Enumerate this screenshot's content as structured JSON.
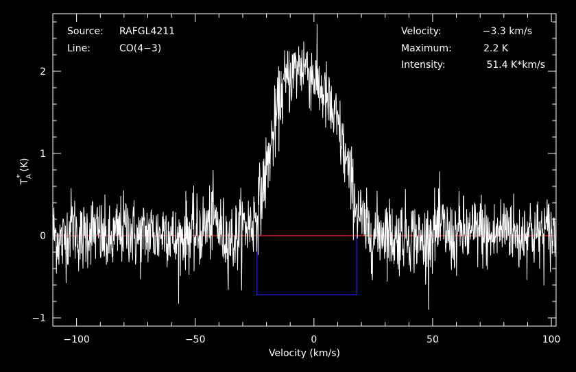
{
  "chart_data": {
    "type": "line",
    "xlabel": "Velocity (km/s)",
    "ylabel": "T",
    "ylabel_sub": "A",
    "ylabel_sup": "*",
    "ylabel_unit": "(K)",
    "xlim": [
      -110,
      102
    ],
    "ylim": [
      -1.1,
      2.7
    ],
    "x_ticks": [
      -100,
      -50,
      0,
      50,
      100
    ],
    "x_tick_labels": [
      "−100",
      "−50",
      "0",
      "50",
      "100"
    ],
    "y_ticks": [
      -1,
      0,
      1,
      2
    ],
    "y_tick_labels": [
      "−1",
      "0",
      "1",
      "2"
    ],
    "grid": false,
    "colors": {
      "background": "#000000",
      "spectrum": "#ffffff",
      "baseline": "#ff2020",
      "window": "#2020ff",
      "axes": "#ffffff"
    },
    "series": [
      {
        "values_description": "CO(4-3) spectrum",
        "x": [
          -110,
          -106,
          -102,
          -98,
          -94,
          -90,
          -86,
          -82,
          -78,
          -74,
          -70,
          -66,
          -62,
          -58,
          -54,
          -50,
          -46,
          -42,
          -38,
          -34,
          -30,
          -26,
          -24,
          -22,
          -20,
          -18,
          -16,
          -14,
          -12,
          -10,
          -8,
          -6,
          -4,
          -2,
          0,
          2,
          4,
          6,
          8,
          10,
          12,
          14,
          16,
          18,
          20,
          22,
          26,
          30,
          34,
          38,
          42,
          46,
          50,
          54,
          58,
          62,
          66,
          70,
          74,
          78,
          82,
          86,
          90,
          94,
          98,
          102
        ],
        "y": [
          0.05,
          -0.1,
          0.15,
          -0.05,
          0.1,
          0.0,
          -0.1,
          0.05,
          0.1,
          -0.05,
          0.05,
          0.0,
          0.1,
          -0.1,
          0.05,
          0.0,
          0.1,
          0.2,
          0.0,
          -0.05,
          0.1,
          0.15,
          0.3,
          0.5,
          0.8,
          1.1,
          1.4,
          1.7,
          1.85,
          1.95,
          2.0,
          2.05,
          2.1,
          2.0,
          1.95,
          1.8,
          1.75,
          1.6,
          1.45,
          1.35,
          1.1,
          0.85,
          0.6,
          0.35,
          0.2,
          0.05,
          0.0,
          0.1,
          -0.05,
          0.05,
          0.0,
          -0.1,
          0.05,
          0.1,
          -0.05,
          0.05,
          0.0,
          0.1,
          -0.05,
          0.05,
          0.15,
          -0.05,
          0.1,
          0.0,
          0.05,
          0.0
        ]
      }
    ],
    "baseline_y": 0,
    "window": {
      "x_start": -24,
      "x_end": 18,
      "y": -0.72
    }
  },
  "info_left": [
    {
      "key": "Source:",
      "value": "RAFGL4211"
    },
    {
      "key": "Line:",
      "value": "CO(4−3)"
    }
  ],
  "info_right": [
    {
      "key": "Velocity:",
      "value": "−3.3 km/s"
    },
    {
      "key": "Maximum:",
      "value": "2.2 K"
    },
    {
      "key": "Intensity:",
      "value": "51.4 K*km/s"
    }
  ]
}
